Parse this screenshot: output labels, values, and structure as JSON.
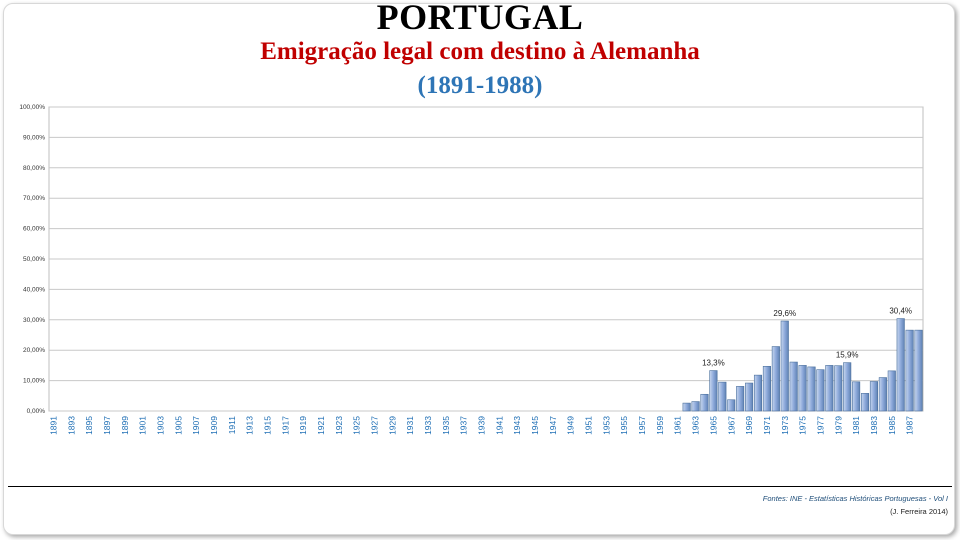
{
  "header": {
    "title": "PORTUGAL",
    "subtitle": "Emigração legal com destino à Alemanha",
    "period": "(1891-1988)"
  },
  "footer": {
    "source": "Fontes: INE - Estatísticas Históricas Portuguesas - Vol I",
    "author": "(J. Ferreira 2014)"
  },
  "colors": {
    "title": "#000000",
    "subtitle": "#c00000",
    "period": "#2e75b6",
    "bar": "#8eaadb",
    "bar_edge": "#4a6f9c",
    "tick_label": "#1f6fb5"
  },
  "chart_data": {
    "type": "bar",
    "title": "",
    "xlabel": "",
    "ylabel": "",
    "ylim": [
      0,
      100
    ],
    "y_ticks": [
      "0,00%",
      "10,00%",
      "20,00%",
      "30,00%",
      "40,00%",
      "50,00%",
      "60,00%",
      "70,00%",
      "80,00%",
      "90,00%",
      "100,00%"
    ],
    "grid": true,
    "x_start": 1891,
    "x_end": 1988,
    "x_tick_labels": [
      "1891",
      "1893",
      "1895",
      "1897",
      "1899",
      "1901",
      "1903",
      "1905",
      "1907",
      "1909",
      "1911",
      "1913",
      "1915",
      "1917",
      "1919",
      "1921",
      "1923",
      "1925",
      "1927",
      "1929",
      "1931",
      "1933",
      "1935",
      "1937",
      "1939",
      "1941",
      "1943",
      "1945",
      "1947",
      "1949",
      "1951",
      "1953",
      "1955",
      "1957",
      "1959",
      "1961",
      "1963",
      "1965",
      "1967",
      "1969",
      "1971",
      "1973",
      "1975",
      "1977",
      "1979",
      "1981",
      "1983",
      "1985",
      "1987"
    ],
    "years": [
      1962,
      1963,
      1964,
      1965,
      1966,
      1967,
      1968,
      1969,
      1970,
      1971,
      1972,
      1973,
      1974,
      1975,
      1976,
      1977,
      1978,
      1979,
      1980,
      1981,
      1982,
      1983,
      1984,
      1985,
      1986,
      1987,
      1988
    ],
    "values": [
      2.6,
      3.1,
      5.5,
      13.3,
      9.5,
      3.7,
      8.1,
      9.2,
      11.8,
      14.7,
      21.2,
      29.6,
      16.1,
      15.0,
      14.5,
      13.6,
      15.0,
      14.9,
      15.9,
      9.6,
      5.8,
      9.7,
      11.0,
      13.2,
      30.4,
      26.6,
      26.6
    ],
    "data_labels": [
      {
        "year": 1965,
        "text": "13,3%"
      },
      {
        "year": 1973,
        "text": "29,6%"
      },
      {
        "year": 1980,
        "text": "15,9%"
      },
      {
        "year": 1986,
        "text": "30,4%"
      }
    ]
  }
}
